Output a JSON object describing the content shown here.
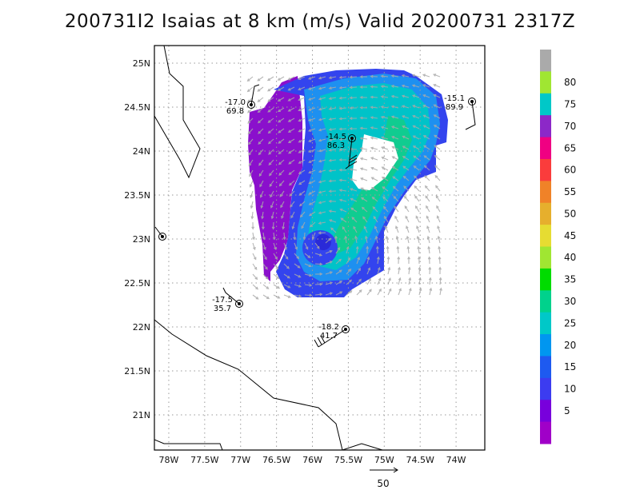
{
  "title": "200731I2 Isaias at 8 km (m/s) Valid 20200731 2317Z",
  "map": {
    "lon_range": [
      -78.2,
      -73.6
    ],
    "lat_range": [
      20.6,
      25.2
    ],
    "x_ticks": [
      -78,
      -77.5,
      -77,
      -76.5,
      -76,
      -75.5,
      -75,
      -74.5,
      -74
    ],
    "x_tick_labels": [
      "78W",
      "77.5W",
      "77W",
      "76.5W",
      "76W",
      "75.5W",
      "75W",
      "74.5W",
      "74W"
    ],
    "y_ticks": [
      21,
      21.5,
      22,
      22.5,
      23,
      23.5,
      24,
      24.5,
      25
    ],
    "y_tick_labels": [
      "21N",
      "21.5N",
      "22N",
      "22.5N",
      "23N",
      "23.5N",
      "24N",
      "24.5N",
      "25N"
    ],
    "grid": true
  },
  "colorbar": {
    "labels": [
      "5",
      "10",
      "15",
      "20",
      "25",
      "30",
      "35",
      "40",
      "45",
      "50",
      "55",
      "60",
      "65",
      "70",
      "75",
      "80"
    ],
    "colors": [
      "#a000c8",
      "#7800dc",
      "#3c3cf0",
      "#1e5af0",
      "#0096f0",
      "#00c8c8",
      "#00d28c",
      "#00dc00",
      "#a0e632",
      "#e6dc32",
      "#e6af2d",
      "#f08228",
      "#fa3c3c",
      "#f00082",
      "#8c28c8",
      "#00c8c8",
      "#a0e632",
      "#aaaaaa"
    ]
  },
  "stations": [
    {
      "t1": "-17.0",
      "t2": "69.8"
    },
    {
      "t1": "-14.5",
      "t2": "86.3"
    },
    {
      "t1": "-15.1",
      "t2": "89.9"
    },
    {
      "t1": "-17.5",
      "t2": "35.7"
    },
    {
      "t1": "-18.2",
      "t2": "41.7"
    }
  ],
  "reference_vector": {
    "label": "50"
  },
  "colors": {
    "vector": "#aaaaaa",
    "frame": "#000000",
    "grid": "#9a9a9a"
  }
}
